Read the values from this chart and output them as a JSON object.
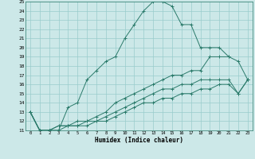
{
  "title": "",
  "xlabel": "Humidex (Indice chaleur)",
  "ylabel": "",
  "xlim": [
    -0.5,
    23.5
  ],
  "ylim": [
    11,
    25
  ],
  "xticks": [
    0,
    1,
    2,
    3,
    4,
    5,
    6,
    7,
    8,
    9,
    10,
    11,
    12,
    13,
    14,
    15,
    16,
    17,
    18,
    19,
    20,
    21,
    22,
    23
  ],
  "yticks": [
    11,
    12,
    13,
    14,
    15,
    16,
    17,
    18,
    19,
    20,
    21,
    22,
    23,
    24,
    25
  ],
  "background_color": "#cce8e8",
  "grid_color": "#99cccc",
  "line_color": "#2a7a6a",
  "lines": [
    {
      "x": [
        0,
        1,
        2,
        3,
        4,
        5,
        6,
        7,
        8,
        9,
        10,
        11,
        12,
        13,
        14,
        15,
        16,
        17,
        18,
        19,
        20,
        21
      ],
      "y": [
        13,
        11,
        11,
        11,
        13.5,
        14,
        16.5,
        17.5,
        18.5,
        19,
        21,
        22.5,
        24,
        25,
        25,
        24.5,
        22.5,
        22.5,
        20,
        20,
        20,
        19
      ]
    },
    {
      "x": [
        0,
        1,
        2,
        3,
        4,
        5,
        6,
        7,
        8,
        9,
        10,
        11,
        12,
        13,
        14,
        15,
        16,
        17,
        18,
        19,
        20,
        21,
        22,
        23
      ],
      "y": [
        13,
        11,
        11,
        11.5,
        11.5,
        12,
        12,
        12.5,
        13,
        14,
        14.5,
        15,
        15.5,
        16,
        16.5,
        17,
        17,
        17.5,
        17.5,
        19,
        19,
        19,
        18.5,
        16.5
      ]
    },
    {
      "x": [
        0,
        1,
        2,
        3,
        4,
        5,
        6,
        7,
        8,
        9,
        10,
        11,
        12,
        13,
        14,
        15,
        16,
        17,
        18,
        19,
        20,
        21,
        22,
        23
      ],
      "y": [
        13,
        11,
        11,
        11.5,
        11.5,
        11.5,
        12,
        12,
        12.5,
        13,
        13.5,
        14,
        14.5,
        15,
        15.5,
        15.5,
        16,
        16,
        16.5,
        16.5,
        16.5,
        16.5,
        15,
        16.5
      ]
    },
    {
      "x": [
        0,
        1,
        2,
        3,
        4,
        5,
        6,
        7,
        8,
        9,
        10,
        11,
        12,
        13,
        14,
        15,
        16,
        17,
        18,
        19,
        20,
        21,
        22,
        23
      ],
      "y": [
        13,
        11,
        11,
        11,
        11.5,
        11.5,
        11.5,
        12,
        12,
        12.5,
        13,
        13.5,
        14,
        14,
        14.5,
        14.5,
        15,
        15,
        15.5,
        15.5,
        16,
        16,
        15,
        16.5
      ]
    }
  ]
}
